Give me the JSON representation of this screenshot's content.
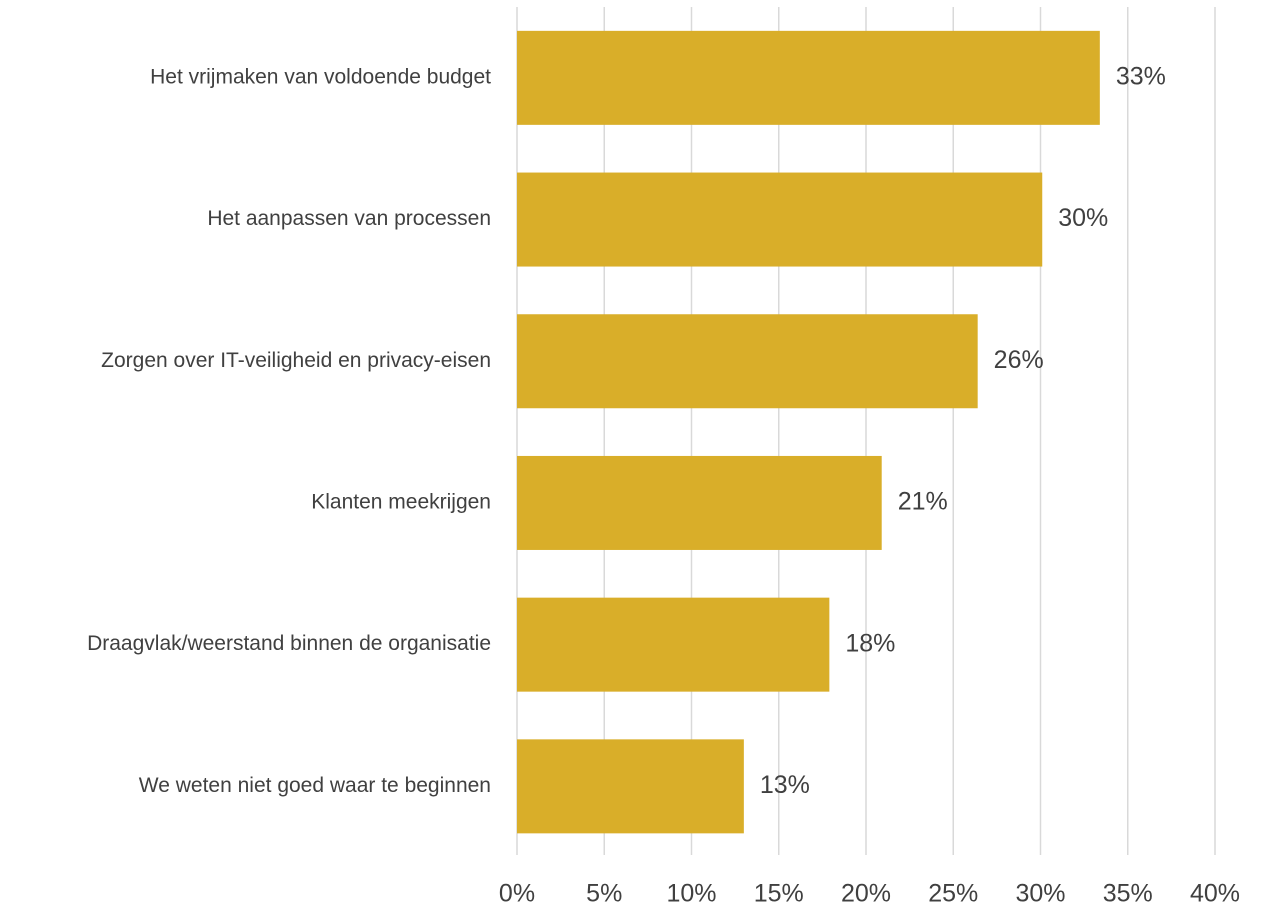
{
  "chart_data": {
    "type": "bar",
    "orientation": "horizontal",
    "categories": [
      "Het vrijmaken van voldoende budget",
      "Het aanpassen van processen",
      "Zorgen over IT-veiligheid en privacy-eisen",
      "Klanten meekrijgen",
      "Draagvlak/weerstand binnen de organisatie",
      "We weten niet goed waar te beginnen"
    ],
    "values": [
      33.4,
      30.1,
      26.4,
      20.9,
      17.9,
      13.0
    ],
    "data_labels": [
      "33%",
      "30%",
      "26%",
      "21%",
      "18%",
      "13%"
    ],
    "xlim": [
      0,
      40
    ],
    "x_ticks": [
      0,
      5,
      10,
      15,
      20,
      25,
      30,
      35,
      40
    ],
    "x_tick_labels": [
      "0%",
      "5%",
      "10%",
      "15%",
      "20%",
      "25%",
      "30%",
      "35%",
      "40%"
    ],
    "title": "",
    "xlabel": "",
    "ylabel": "",
    "grid": "vertical",
    "legend": "none",
    "bar_color": "#D9AE29"
  }
}
